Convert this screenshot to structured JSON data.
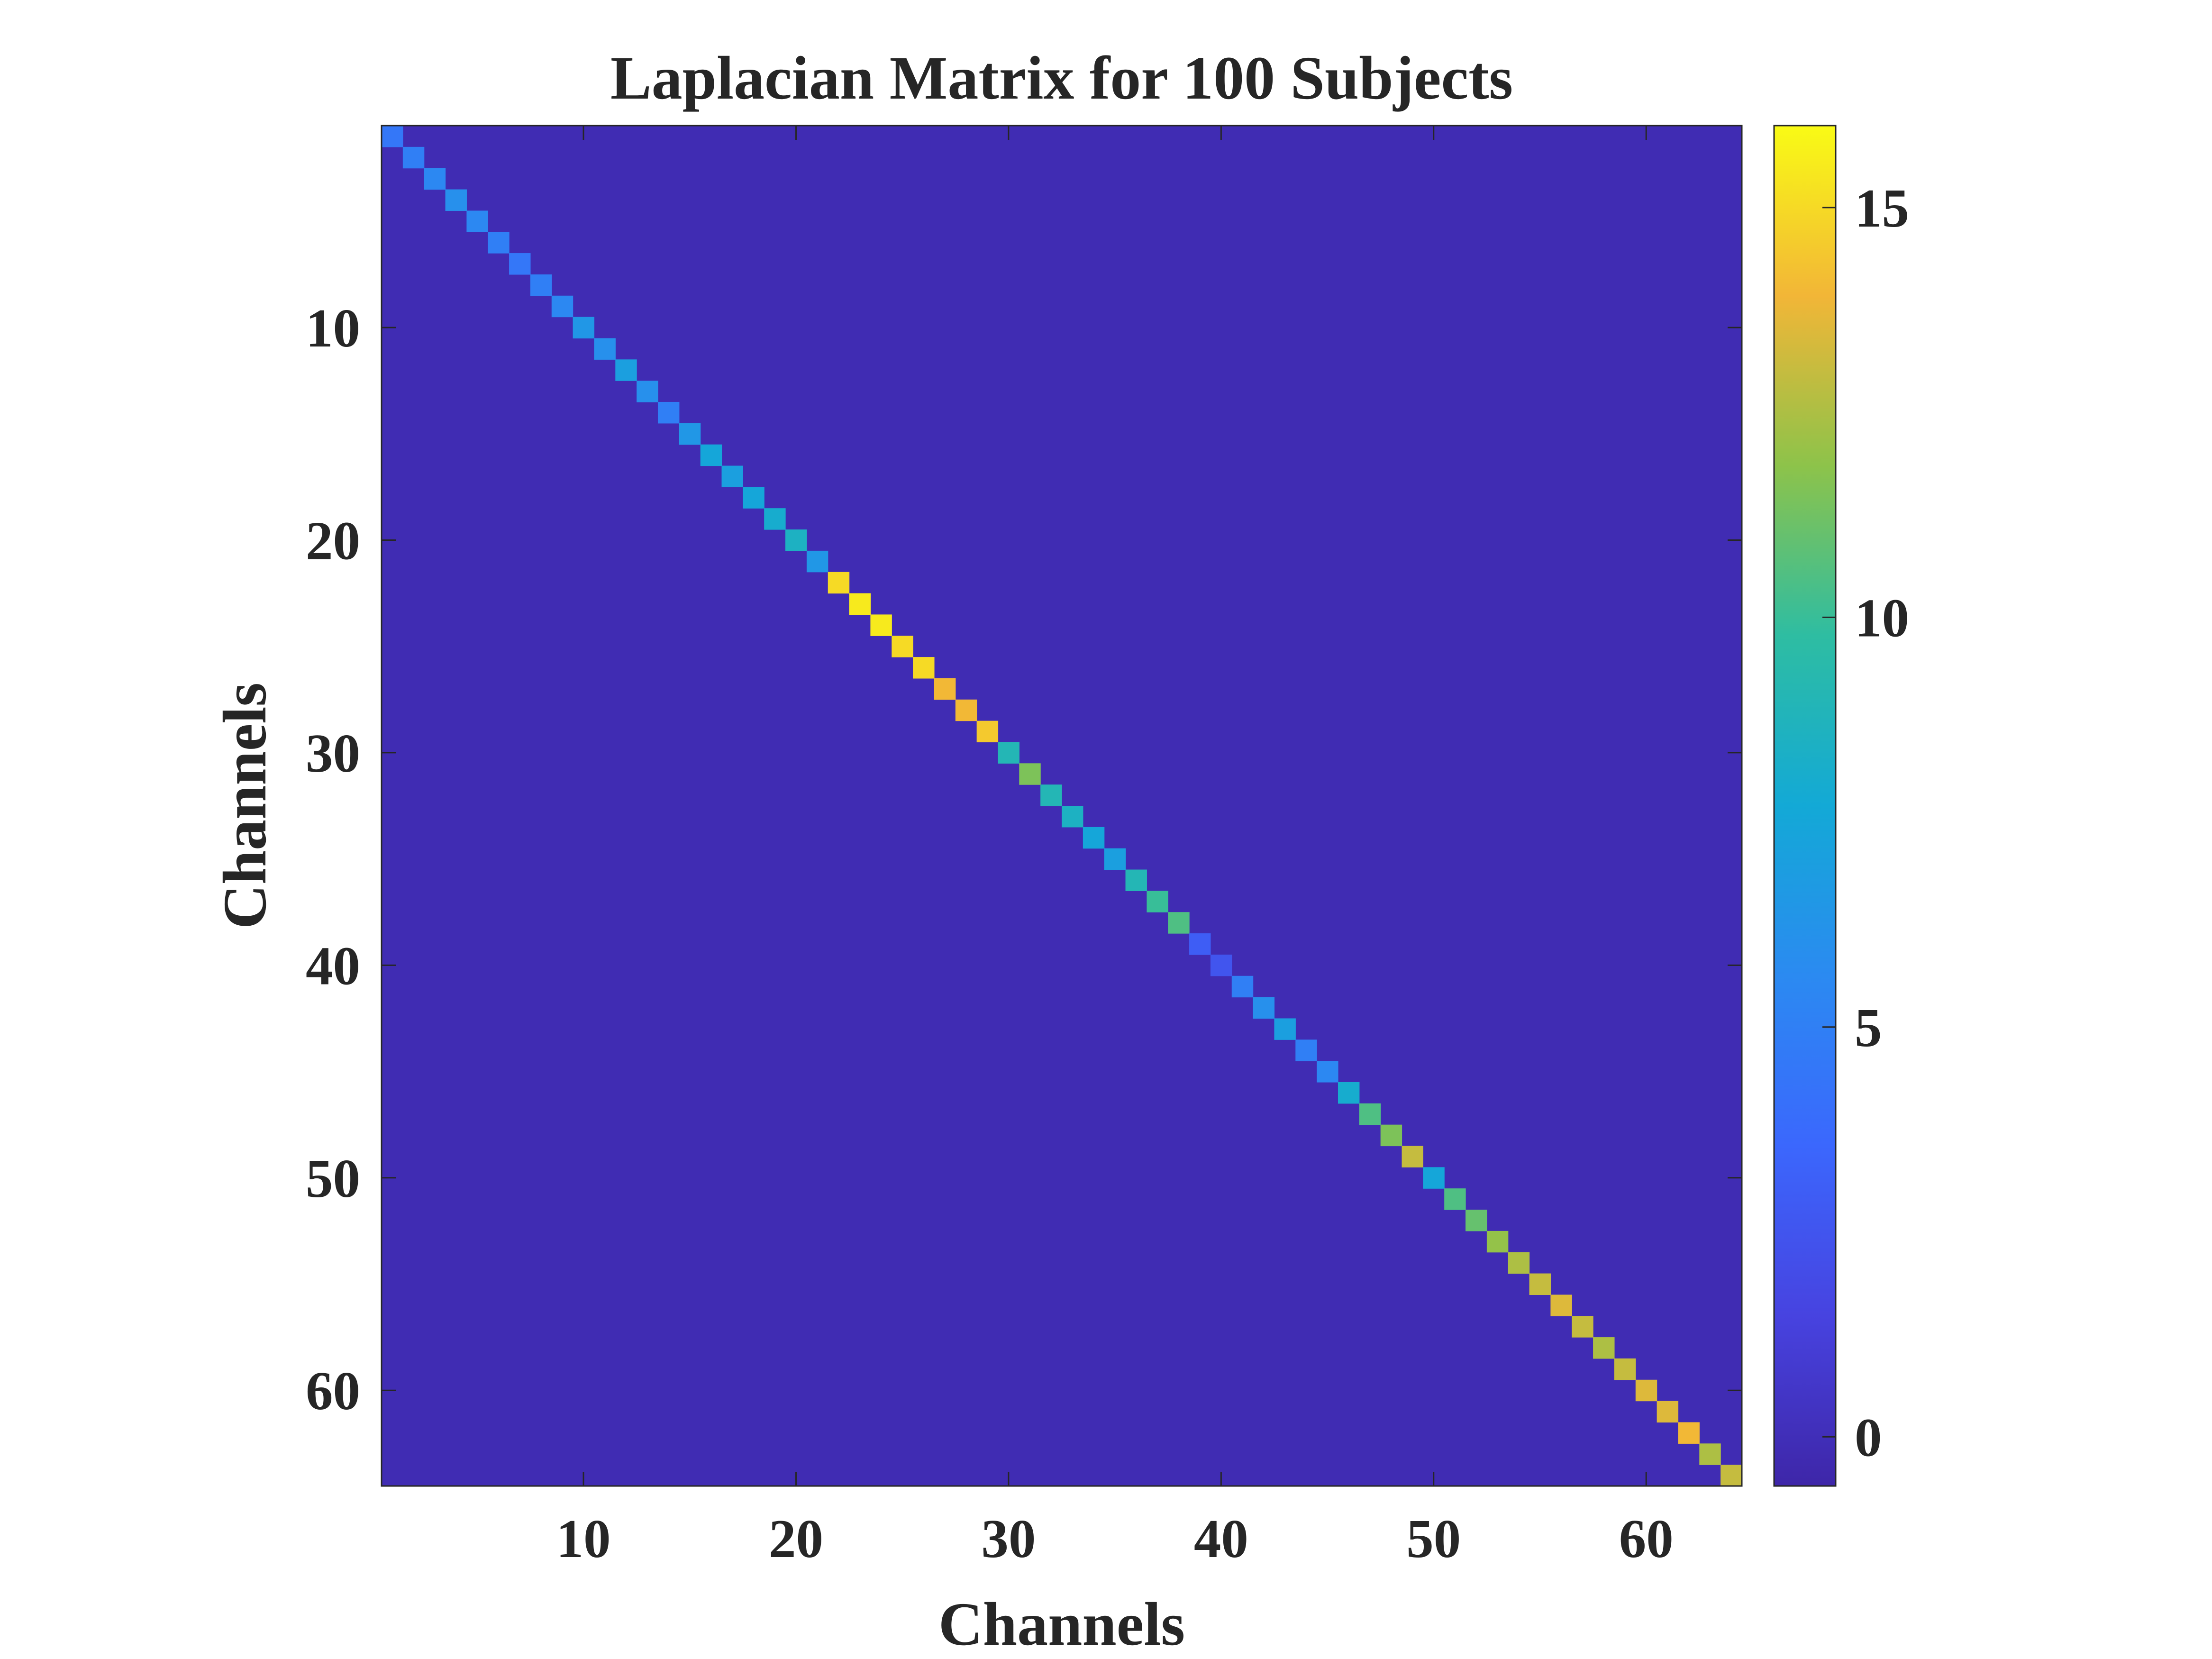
{
  "chart_data": {
    "type": "heatmap",
    "title": "Laplacian Matrix for 100 Subjects",
    "xlabel": "Channels",
    "ylabel": "Channels",
    "size": 64,
    "x_ticks": [
      10,
      20,
      30,
      40,
      50,
      60
    ],
    "y_ticks": [
      10,
      20,
      30,
      40,
      50,
      60
    ],
    "colorbar": {
      "colormap": "parula",
      "clim": [
        -0.6,
        16
      ],
      "ticks": [
        0,
        5,
        10,
        15
      ]
    },
    "off_diagonal_value": -0.2,
    "diagonal": [
      4.5,
      5.0,
      5.5,
      6.0,
      5.5,
      5.0,
      4.5,
      5.0,
      5.5,
      6.5,
      6.0,
      7.0,
      6.0,
      5.0,
      6.5,
      7.5,
      7.0,
      7.5,
      8.0,
      8.5,
      6.5,
      15.0,
      15.5,
      15.5,
      15.0,
      15.0,
      14.0,
      14.0,
      14.5,
      9.0,
      11.5,
      9.0,
      8.5,
      7.5,
      7.0,
      9.0,
      10.0,
      10.5,
      3.0,
      2.5,
      5.0,
      6.0,
      7.0,
      5.0,
      5.5,
      8.0,
      10.5,
      11.5,
      13.0,
      7.5,
      10.5,
      11.0,
      12.0,
      12.5,
      13.0,
      13.5,
      13.0,
      12.5,
      13.0,
      13.5,
      13.5,
      14.0,
      12.5,
      13.0
    ]
  }
}
